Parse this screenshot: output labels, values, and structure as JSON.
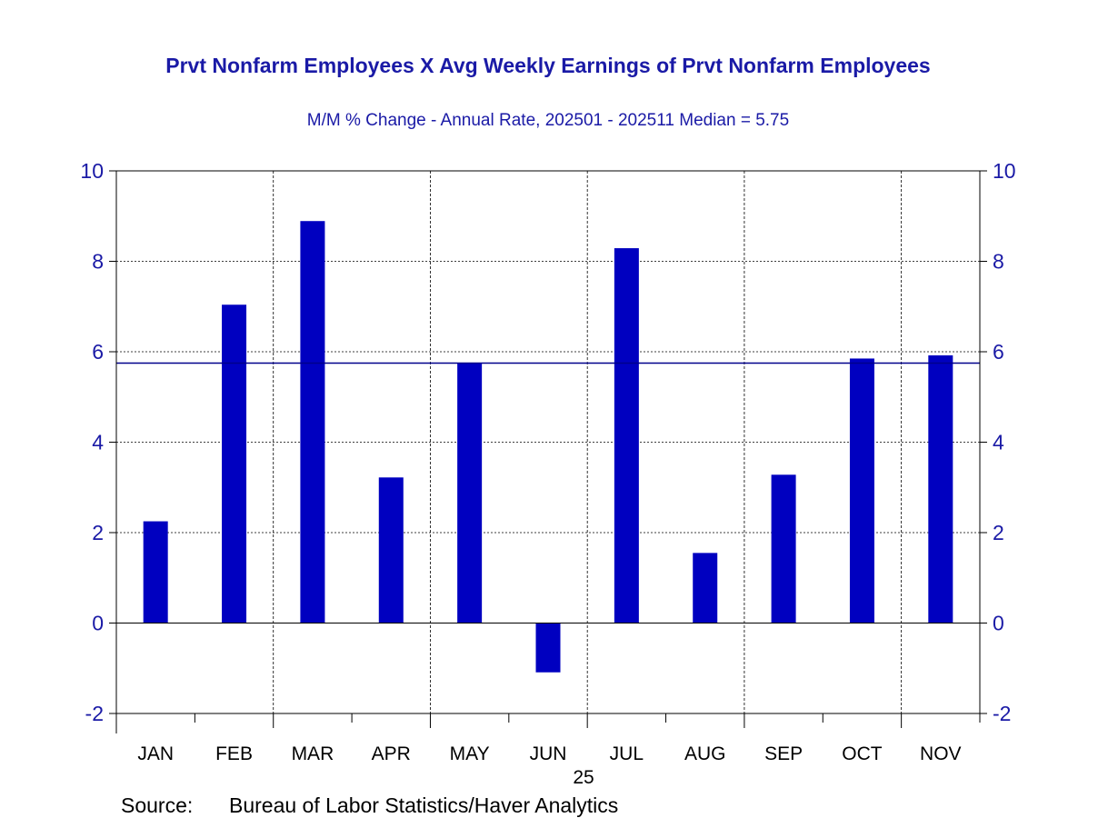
{
  "chart_data": {
    "type": "bar",
    "title": "Prvt Nonfarm Employees X Avg Weekly Earnings of Prvt Nonfarm Employees",
    "subtitle": "M/M % Change - Annual Rate, 202501 - 202511 Median = 5.75",
    "categories": [
      "JAN",
      "FEB",
      "MAR",
      "APR",
      "MAY",
      "JUN",
      "JUL",
      "AUG",
      "SEP",
      "OCT",
      "NOV"
    ],
    "values": [
      2.25,
      7.04,
      8.89,
      3.22,
      5.75,
      -1.09,
      8.29,
      1.55,
      3.28,
      5.85,
      5.92
    ],
    "median": 5.75,
    "year_label": "25",
    "ylim": [
      -2,
      10
    ],
    "yticks": [
      -2,
      0,
      2,
      4,
      6,
      8,
      10
    ],
    "source_label": "Source:",
    "source": "Bureau of Labor Statistics/Haver Analytics",
    "colors": {
      "bar": "#0000c0",
      "text": "#1a1aa6",
      "median": "#00008b"
    }
  }
}
